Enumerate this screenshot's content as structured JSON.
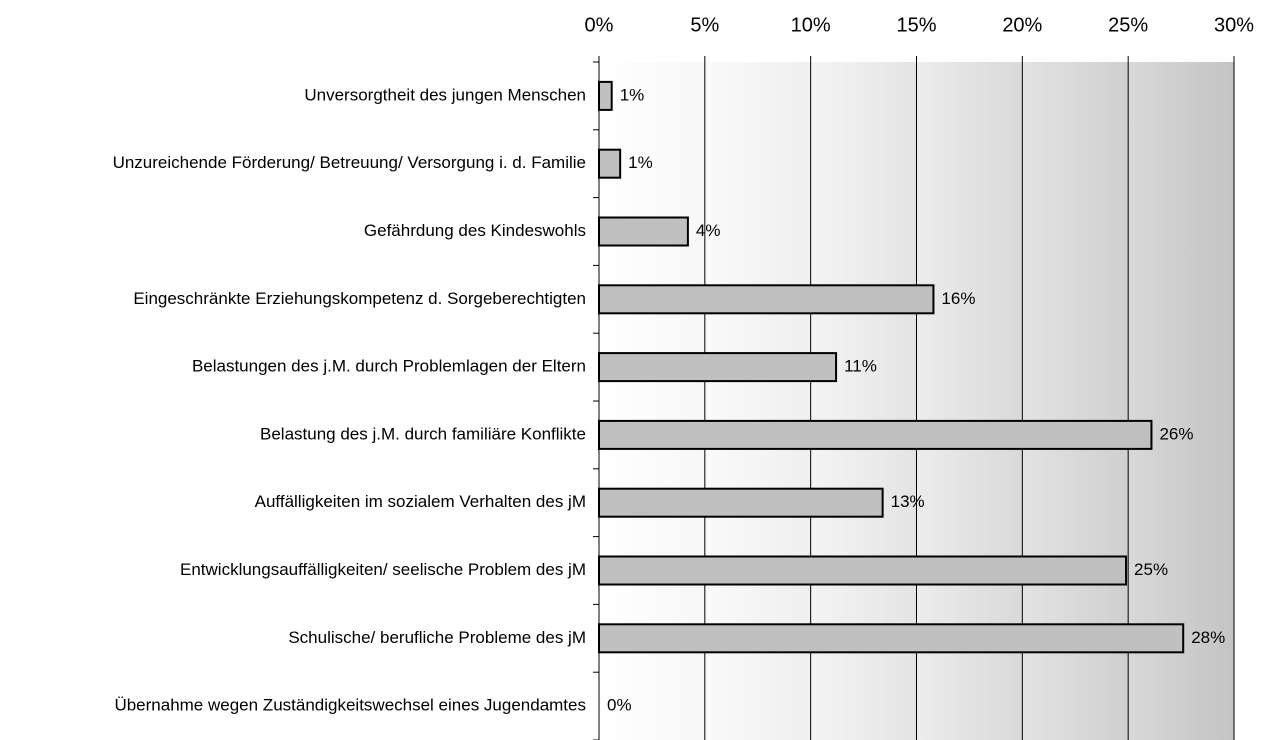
{
  "chart_data": {
    "type": "barh",
    "categories": [
      "Unversorgtheit des  jungen Menschen",
      "Unzureichende Förderung/ Betreuung/ Versorgung i. d. Familie",
      "Gefährdung des Kindeswohls",
      "Eingeschränkte Erziehungskompetenz d. Sorgeberechtigten",
      "Belastungen des j.M. durch Problemlagen der Eltern",
      "Belastung des j.M. durch familiäre Konflikte",
      "Auffälligkeiten im sozialem Verhalten des jM",
      "Entwicklungsauffälligkeiten/ seelische Problem des jM",
      "Schulische/ berufliche Probleme des jM",
      "Übernahme wegen Zuständigkeitswechsel eines Jugendamtes"
    ],
    "values": [
      0.6,
      1.0,
      4.2,
      15.8,
      11.2,
      26.1,
      13.4,
      24.9,
      27.6,
      0
    ],
    "value_labels": [
      "1%",
      "1%",
      "4%",
      "16%",
      "11%",
      "26%",
      "13%",
      "25%",
      "28%",
      "0%"
    ],
    "color": "#c0c0c0",
    "xlim": [
      0,
      30
    ],
    "xticks": [
      {
        "value": 0,
        "label": "0%"
      },
      {
        "value": 5,
        "label": "5%"
      },
      {
        "value": 10,
        "label": "10%"
      },
      {
        "value": 15,
        "label": "15%"
      },
      {
        "value": 20,
        "label": "20%"
      },
      {
        "value": 25,
        "label": "25%"
      },
      {
        "value": 30,
        "label": "30%"
      }
    ],
    "grid": true
  }
}
